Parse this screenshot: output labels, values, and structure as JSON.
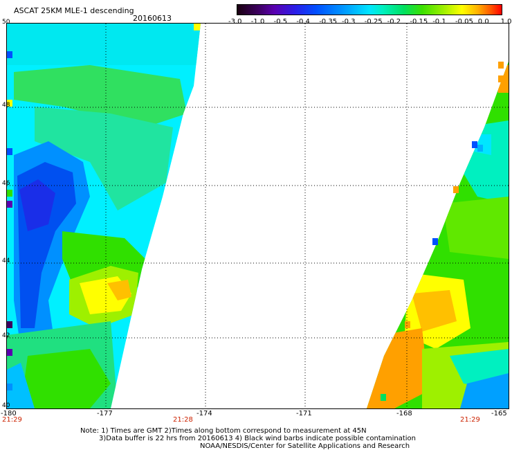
{
  "header": {
    "title": "ASCAT 25KM MLE-1 descending",
    "date": "20160613"
  },
  "colorbar": {
    "labels": [
      "-3.0",
      "-1.0",
      "-0.5",
      "-0.4",
      "-0.35",
      "-0.3",
      "-0.25",
      "-0.2",
      "-0.15",
      "-0.1",
      "-0.05",
      "0.0",
      "1.0"
    ]
  },
  "axes": {
    "lat_labels": [
      "50",
      "48",
      "46",
      "44",
      "42",
      "40"
    ],
    "lon_labels": [
      "-180",
      "-177",
      "-174",
      "-171",
      "-168",
      "-165"
    ],
    "times": [
      "21:29",
      "21:28",
      "21:29"
    ]
  },
  "footer": {
    "note1": "Note: 1) Times are GMT 2)Times along bottom correspond to measurement at 45N",
    "note2": "3)Data buffer is 22 hrs from 20160613 4) Black wind barbs indicate possible contamination",
    "credit": "NOAA/NESDIS/Center for Satellite Applications and Research"
  },
  "colors": {
    "low": "#1a0010",
    "blue": "#0050ff",
    "cyan": "#00f0ff",
    "green": "#30e000",
    "yellow": "#ffff00",
    "orange": "#ffa000",
    "high": "#ff0000"
  }
}
